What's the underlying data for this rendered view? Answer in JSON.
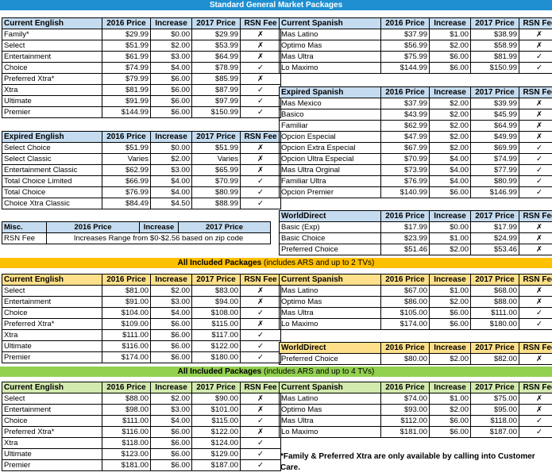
{
  "banners": {
    "standard": "Standard General Market Packages",
    "all2_bold": "All Included Packages",
    "all2_rest": " (includes ARS and up to 2 TVs)",
    "all4_bold": "All Included Packages",
    "all4_rest": " (includes ARS and up to 4 TVs)"
  },
  "cols": [
    "2016 Price",
    "Increase",
    "2017 Price",
    "RSN Fee"
  ],
  "std_english": {
    "title": "Current English",
    "rows": [
      [
        "Family*",
        "$29.99",
        "$0.00",
        "$29.99",
        "✗"
      ],
      [
        "Select",
        "$51.99",
        "$2.00",
        "$53.99",
        "✗"
      ],
      [
        "Entertainment",
        "$61.99",
        "$3.00",
        "$64.99",
        "✗"
      ],
      [
        "Choice",
        "$74.99",
        "$4.00",
        "$78.99",
        "✓"
      ],
      [
        "Preferred Xtra*",
        "$79.99",
        "$6.00",
        "$85.99",
        "✗"
      ],
      [
        "Xtra",
        "$81.99",
        "$6.00",
        "$87.99",
        "✓"
      ],
      [
        "Ultimate",
        "$91.99",
        "$6.00",
        "$97.99",
        "✓"
      ],
      [
        "Premier",
        "$144.99",
        "$6.00",
        "$150.99",
        "✓"
      ]
    ]
  },
  "exp_english": {
    "title": "Expired English",
    "rows": [
      [
        "Select Choice",
        "$51.99",
        "$0.00",
        "$51.99",
        "✗"
      ],
      [
        "Select Classic",
        "Varies",
        "$2.00",
        "Varies",
        "✗"
      ],
      [
        "Entertainment Classic",
        "$62.99",
        "$3.00",
        "$65.99",
        "✗"
      ],
      [
        "Total Choice Limited",
        "$66.99",
        "$4.00",
        "$70.99",
        "✓"
      ],
      [
        "Total Choice",
        "$76.99",
        "$4.00",
        "$80.99",
        "✓"
      ],
      [
        "Choice Xtra Classic",
        "$84.49",
        "$4.50",
        "$88.99",
        "✓"
      ]
    ]
  },
  "misc": {
    "title": "Misc.",
    "c2016": "2016 Price",
    "cinc": "Increase",
    "c2017": "2017 Price",
    "label": "RSN Fee",
    "text": "Increases Range from $0-$2.56 based on zip code"
  },
  "std_spanish": {
    "title": "Current Spanish",
    "rows": [
      [
        "Mas Latino",
        "$37.99",
        "$1.00",
        "$38.99",
        "✗"
      ],
      [
        "Optimo Mas",
        "$56.99",
        "$2.00",
        "$58.99",
        "✗"
      ],
      [
        "Mas Ultra",
        "$75.99",
        "$6.00",
        "$81.99",
        "✓"
      ],
      [
        "Lo Maximo",
        "$144.99",
        "$6.00",
        "$150.99",
        "✓"
      ]
    ]
  },
  "exp_spanish": {
    "title": "Expired Spanish",
    "rows": [
      [
        "Mas Mexico",
        "$37.99",
        "$2.00",
        "$39.99",
        "✗"
      ],
      [
        "Basico",
        "$43.99",
        "$2.00",
        "$45.99",
        "✗"
      ],
      [
        "Familiar",
        "$62.99",
        "$2.00",
        "$64.99",
        "✗"
      ],
      [
        "Opcion Especial",
        "$47.99",
        "$2.00",
        "$49.99",
        "✗"
      ],
      [
        "Opcion Extra Especial",
        "$67.99",
        "$2.00",
        "$69.99",
        "✓"
      ],
      [
        "Opcion Ultra Especial",
        "$70.99",
        "$4.00",
        "$74.99",
        "✓"
      ],
      [
        "Mas Ultra Orginal",
        "$73.99",
        "$4.00",
        "$77.99",
        "✓"
      ],
      [
        "Familiar Ultra",
        "$76.99",
        "$4.00",
        "$80.99",
        "✓"
      ],
      [
        "Opcion Premier",
        "$140.99",
        "$6.00",
        "$146.99",
        "✓"
      ]
    ]
  },
  "worlddirect": {
    "title": "WorldDirect",
    "rows": [
      [
        "Basic (Exp)",
        "$17.99",
        "$0.00",
        "$17.99",
        "✗"
      ],
      [
        "Basic Choice",
        "$23.99",
        "$1.00",
        "$24.99",
        "✗"
      ],
      [
        "Preferred Choice",
        "$51.46",
        "$2.00",
        "$53.46",
        "✗"
      ]
    ]
  },
  "all2_english": {
    "title": "Current English",
    "rows": [
      [
        "Select",
        "$81.00",
        "$2.00",
        "$83.00",
        "✗"
      ],
      [
        "Entertainment",
        "$91.00",
        "$3.00",
        "$94.00",
        "✗"
      ],
      [
        "Choice",
        "$104.00",
        "$4.00",
        "$108.00",
        "✓"
      ],
      [
        "Preferred Xtra*",
        "$109.00",
        "$6.00",
        "$115.00",
        "✗"
      ],
      [
        "Xtra",
        "$111.00",
        "$6.00",
        "$117.00",
        "✓"
      ],
      [
        "Ultimate",
        "$116.00",
        "$6.00",
        "$122.00",
        "✓"
      ],
      [
        "Premier",
        "$174.00",
        "$6.00",
        "$180.00",
        "✓"
      ]
    ]
  },
  "all2_spanish": {
    "title": "Current Spanish",
    "rows": [
      [
        "Mas Latino",
        "$67.00",
        "$1.00",
        "$68.00",
        "✗"
      ],
      [
        "Optimo Mas",
        "$86.00",
        "$2.00",
        "$88.00",
        "✗"
      ],
      [
        "Mas Ultra",
        "$105.00",
        "$6.00",
        "$111.00",
        "✓"
      ],
      [
        "Lo Maximo",
        "$174.00",
        "$6.00",
        "$180.00",
        "✓"
      ]
    ]
  },
  "all2_world": {
    "title": "WorldDirect",
    "rows": [
      [
        "Preferred Choice",
        "$80.00",
        "$2.00",
        "$82.00",
        "✗"
      ]
    ]
  },
  "all4_english": {
    "title": "Current English",
    "rows": [
      [
        "Select",
        "$88.00",
        "$2.00",
        "$90.00",
        "✗"
      ],
      [
        "Entertainment",
        "$98.00",
        "$3.00",
        "$101.00",
        "✗"
      ],
      [
        "Choice",
        "$111.00",
        "$4.00",
        "$115.00",
        "✓"
      ],
      [
        "Preferred Xtra*",
        "$116.00",
        "$6.00",
        "$122.00",
        "✗"
      ],
      [
        "Xtra",
        "$118.00",
        "$6.00",
        "$124.00",
        "✓"
      ],
      [
        "Ultimate",
        "$123.00",
        "$6.00",
        "$129.00",
        "✓"
      ],
      [
        "Premier",
        "$181.00",
        "$6.00",
        "$187.00",
        "✓"
      ]
    ]
  },
  "all4_spanish": {
    "title": "Current Spanish",
    "rows": [
      [
        "Mas Latino",
        "$74.00",
        "$1.00",
        "$75.00",
        "✗"
      ],
      [
        "Optimo Mas",
        "$93.00",
        "$2.00",
        "$95.00",
        "✗"
      ],
      [
        "Mas Ultra",
        "$112.00",
        "$6.00",
        "$118.00",
        "✓"
      ],
      [
        "Lo Maximo",
        "$181.00",
        "$6.00",
        "$187.00",
        "✓"
      ]
    ]
  },
  "footnote": "*Family & Preferred Xtra are only available by calling into Customer Care."
}
